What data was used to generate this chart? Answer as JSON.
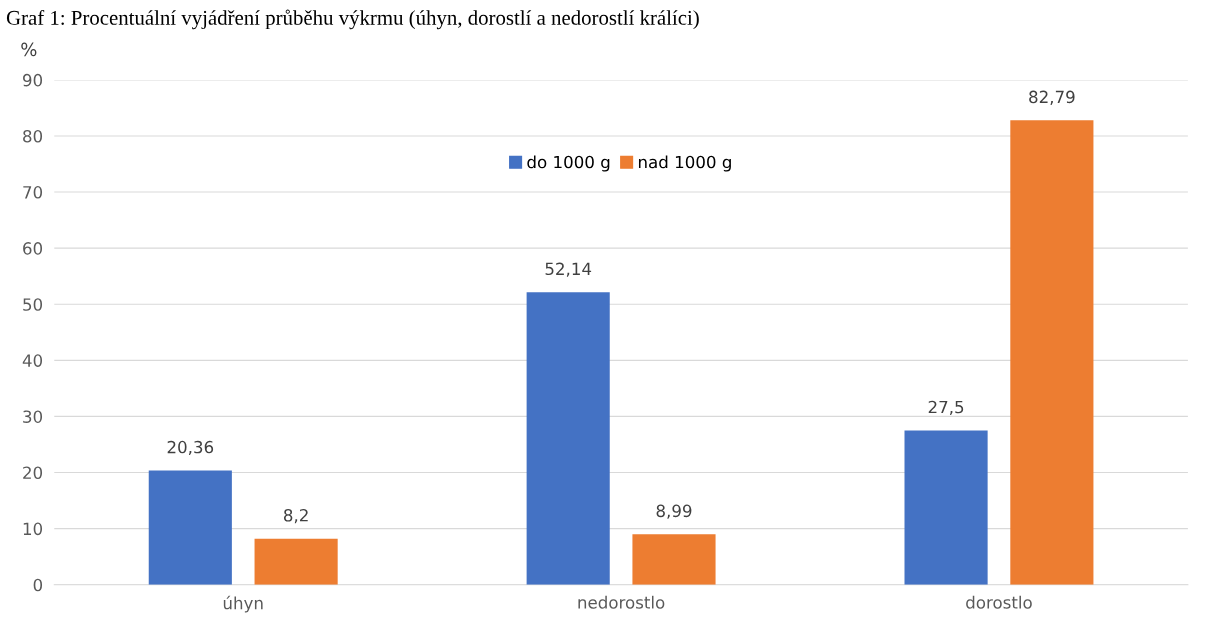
{
  "chart_data": {
    "type": "bar",
    "title": "Graf 1: Procentuální vyjádření průběhu výkrmu (úhyn, dorostlí a nedorostlí králíci)",
    "ylabel": "%",
    "categories": [
      "úhyn",
      "nedorostlo",
      "dorostlo"
    ],
    "series": [
      {
        "name": "do 1000 g",
        "color": "#4472c4",
        "values": [
          20.36,
          52.14,
          27.5
        ],
        "value_labels": [
          "20,36",
          "52,14",
          "27,5"
        ]
      },
      {
        "name": "nad 1000 g",
        "color": "#ed7d31",
        "values": [
          8.2,
          8.99,
          82.79
        ],
        "value_labels": [
          "8,2",
          "8,99",
          "82,79"
        ]
      }
    ],
    "ylim": [
      0,
      90
    ],
    "yticks": [
      0,
      10,
      20,
      30,
      40,
      50,
      60,
      70,
      80,
      90
    ],
    "grid": "y",
    "legend": "top"
  }
}
